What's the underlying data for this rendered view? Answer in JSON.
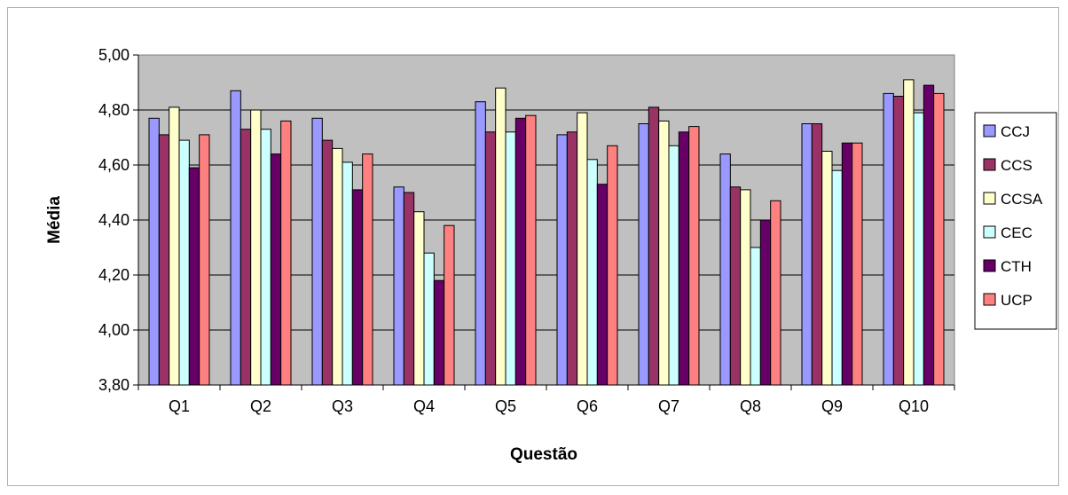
{
  "chart_data": {
    "type": "bar",
    "title": "",
    "xlabel": "Questão",
    "ylabel": "Média",
    "ylim": [
      3.8,
      5.0
    ],
    "yticks": [
      "3,80",
      "4,00",
      "4,20",
      "4,40",
      "4,60",
      "4,80",
      "5,00"
    ],
    "ytick_values": [
      3.8,
      4.0,
      4.2,
      4.4,
      4.6,
      4.8,
      5.0
    ],
    "grid": true,
    "legend_position": "right",
    "categories": [
      "Q1",
      "Q2",
      "Q3",
      "Q4",
      "Q5",
      "Q6",
      "Q7",
      "Q8",
      "Q9",
      "Q10"
    ],
    "series": [
      {
        "name": "CCJ",
        "color": "#9999ff",
        "values": [
          4.77,
          4.87,
          4.77,
          4.52,
          4.83,
          4.71,
          4.75,
          4.64,
          4.75,
          4.86
        ]
      },
      {
        "name": "CCS",
        "color": "#993366",
        "values": [
          4.71,
          4.73,
          4.69,
          4.5,
          4.72,
          4.72,
          4.81,
          4.52,
          4.75,
          4.85
        ]
      },
      {
        "name": "CCSA",
        "color": "#ffffcc",
        "values": [
          4.81,
          4.8,
          4.66,
          4.43,
          4.88,
          4.79,
          4.76,
          4.51,
          4.65,
          4.91
        ]
      },
      {
        "name": "CEC",
        "color": "#ccffff",
        "values": [
          4.69,
          4.73,
          4.61,
          4.28,
          4.72,
          4.62,
          4.67,
          4.3,
          4.58,
          4.79
        ]
      },
      {
        "name": "CTH",
        "color": "#660066",
        "values": [
          4.59,
          4.64,
          4.51,
          4.18,
          4.77,
          4.53,
          4.72,
          4.4,
          4.68,
          4.89
        ]
      },
      {
        "name": "UCP",
        "color": "#ff8080",
        "values": [
          4.71,
          4.76,
          4.64,
          4.38,
          4.78,
          4.67,
          4.74,
          4.47,
          4.68,
          4.86
        ]
      }
    ]
  }
}
